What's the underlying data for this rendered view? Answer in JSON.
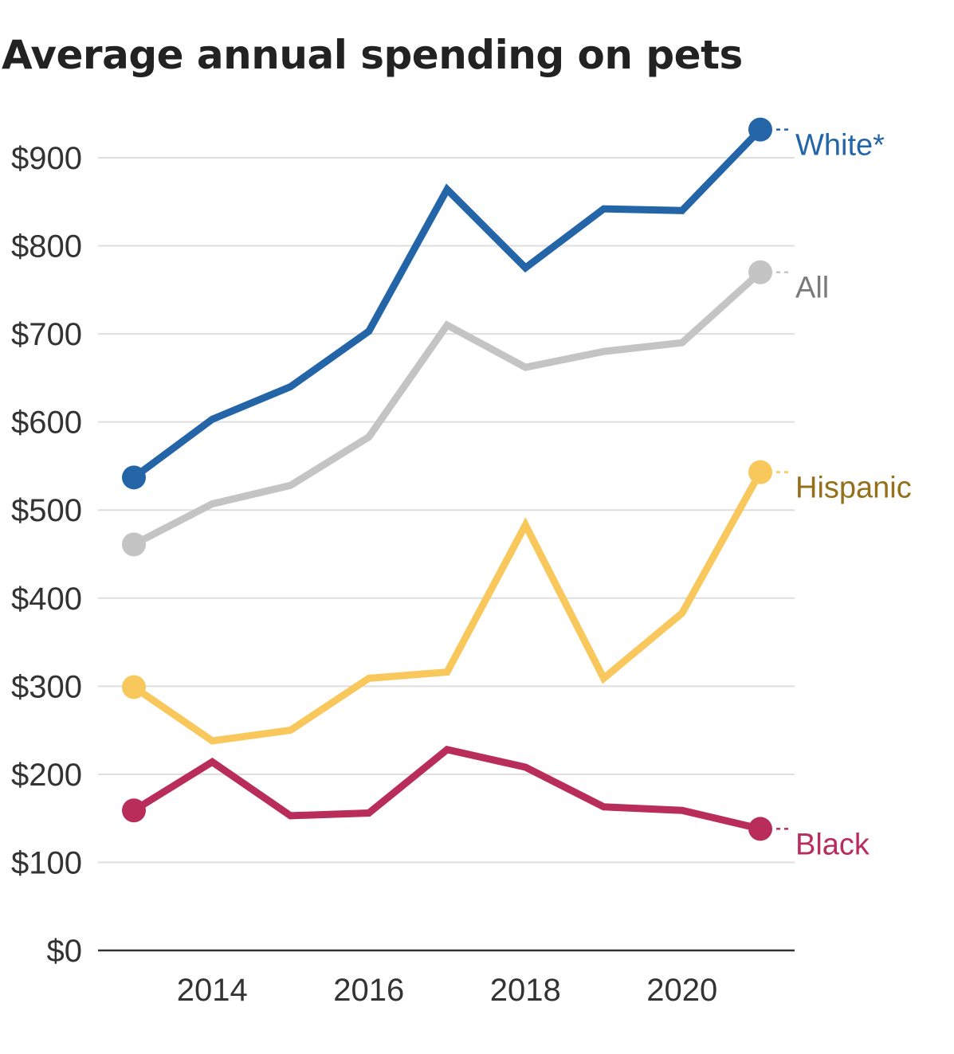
{
  "chart_data": {
    "type": "line",
    "title": "Average annual spending on pets",
    "xlabel": "",
    "ylabel": "",
    "x": [
      2013,
      2014,
      2015,
      2016,
      2017,
      2018,
      2019,
      2020,
      2021
    ],
    "xlim": [
      2013,
      2021
    ],
    "ylim": [
      0,
      900
    ],
    "x_ticks": [
      2014,
      2016,
      2018,
      2020
    ],
    "x_tick_labels": [
      "2014",
      "2016",
      "2018",
      "2020"
    ],
    "y_ticks": [
      0,
      100,
      200,
      300,
      400,
      500,
      600,
      700,
      800,
      900
    ],
    "y_tick_labels": [
      "$0",
      "$100",
      "$200",
      "$300",
      "$400",
      "$500",
      "$600",
      "$700",
      "$800",
      "$900"
    ],
    "grid": true,
    "legend": "direct labels at line ends",
    "series": [
      {
        "name": "White*",
        "color": "#2465a8",
        "label_color": "#2465a8",
        "values": [
          537,
          603,
          640,
          703,
          864,
          775,
          842,
          840,
          932
        ]
      },
      {
        "name": "All",
        "color": "#c4c4c4",
        "label_color": "#7a7a7a",
        "values": [
          461,
          507,
          528,
          583,
          710,
          662,
          680,
          690,
          770
        ]
      },
      {
        "name": "Hispanic",
        "color": "#f8c85d",
        "label_color": "#94701a",
        "values": [
          299,
          238,
          250,
          309,
          316,
          483,
          309,
          383,
          543
        ]
      },
      {
        "name": "Black",
        "color": "#b92d5b",
        "label_color": "#b92d5b",
        "values": [
          159,
          214,
          153,
          156,
          228,
          208,
          163,
          159,
          138
        ]
      }
    ]
  }
}
